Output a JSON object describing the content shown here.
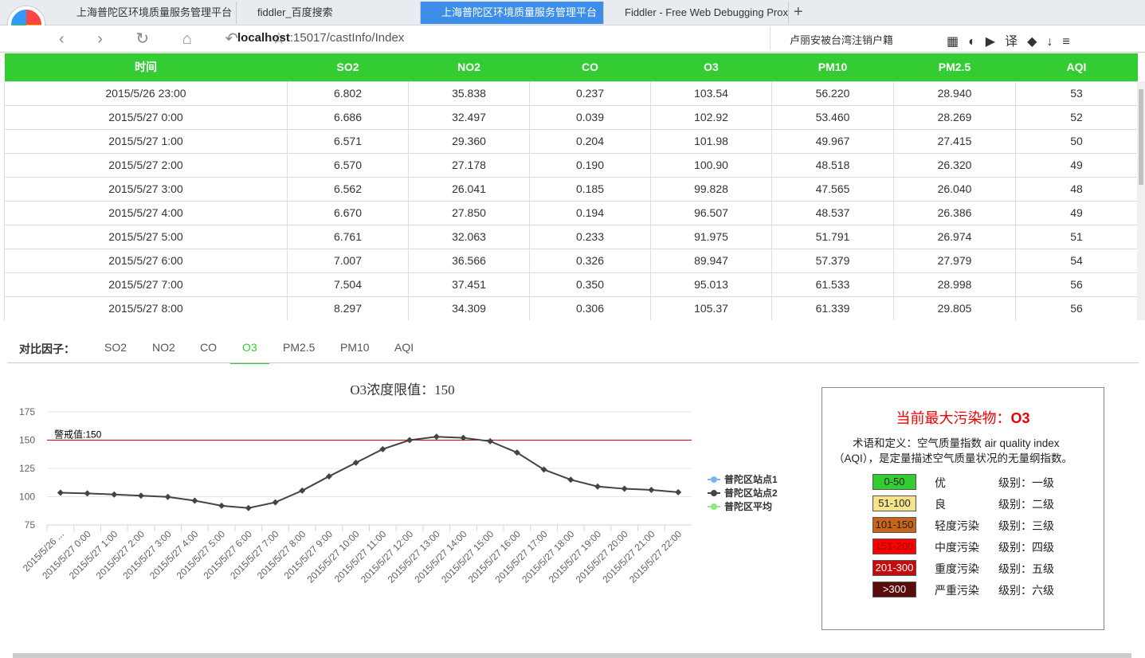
{
  "browser": {
    "tabs": [
      "上海普陀区环境质量服务管理平台",
      "fiddler_百度搜索",
      "上海普陀区环境质量服务管理平台",
      "Fiddler - Free Web Debugging Proxy"
    ],
    "active_tab": 2,
    "url_host": "localhost",
    "url_path": ":15017/castInfo/Index",
    "search": "卢丽安被台湾注销户籍"
  },
  "table": {
    "headers": [
      "时间",
      "SO2",
      "NO2",
      "CO",
      "O3",
      "PM10",
      "PM2.5",
      "AQI"
    ],
    "rows": [
      [
        "2015/5/26 23:00",
        "6.802",
        "35.838",
        "0.237",
        "103.54",
        "56.220",
        "28.940",
        "53"
      ],
      [
        "2015/5/27 0:00",
        "6.686",
        "32.497",
        "0.039",
        "102.92",
        "53.460",
        "28.269",
        "52"
      ],
      [
        "2015/5/27 1:00",
        "6.571",
        "29.360",
        "0.204",
        "101.98",
        "49.967",
        "27.415",
        "50"
      ],
      [
        "2015/5/27 2:00",
        "6.570",
        "27.178",
        "0.190",
        "100.90",
        "48.518",
        "26.320",
        "49"
      ],
      [
        "2015/5/27 3:00",
        "6.562",
        "26.041",
        "0.185",
        "99.828",
        "47.565",
        "26.040",
        "48"
      ],
      [
        "2015/5/27 4:00",
        "6.670",
        "27.850",
        "0.194",
        "96.507",
        "48.537",
        "26.386",
        "49"
      ],
      [
        "2015/5/27 5:00",
        "6.761",
        "32.063",
        "0.233",
        "91.975",
        "51.791",
        "26.974",
        "51"
      ],
      [
        "2015/5/27 6:00",
        "7.007",
        "36.566",
        "0.326",
        "89.947",
        "57.379",
        "27.979",
        "54"
      ],
      [
        "2015/5/27 7:00",
        "7.504",
        "37.451",
        "0.350",
        "95.013",
        "61.533",
        "28.998",
        "56"
      ],
      [
        "2015/5/27 8:00",
        "8.297",
        "34.309",
        "0.306",
        "105.37",
        "61.339",
        "29.805",
        "56"
      ]
    ]
  },
  "factors": {
    "label": "对比因子：",
    "items": [
      "SO2",
      "NO2",
      "CO",
      "O3",
      "PM2.5",
      "PM10",
      "AQI"
    ],
    "active": 3
  },
  "chart_data": {
    "type": "line",
    "title": "O3浓度限值：150",
    "categories": [
      "2015/5/26 ...",
      "2015/5/27 0:00",
      "2015/5/27 1:00",
      "2015/5/27 2:00",
      "2015/5/27 3:00",
      "2015/5/27 4:00",
      "2015/5/27 5:00",
      "2015/5/27 6:00",
      "2015/5/27 7:00",
      "2015/5/27 8:00",
      "2015/5/27 9:00",
      "2015/5/27 10:00",
      "2015/5/27 11:00",
      "2015/5/27 12:00",
      "2015/5/27 13:00",
      "2015/5/27 14:00",
      "2015/5/27 15:00",
      "2015/5/27 16:00",
      "2015/5/27 17:00",
      "2015/5/27 18:00",
      "2015/5/27 19:00",
      "2015/5/27 20:00",
      "2015/5/27 21:00",
      "2015/5/27 22:00"
    ],
    "series": [
      {
        "name": "普陀区站点1",
        "color": "#7cb5ec",
        "values": [
          null,
          null,
          null,
          null,
          null,
          null,
          null,
          null,
          null,
          null,
          null,
          null,
          null,
          null,
          null,
          null,
          null,
          null,
          null,
          null,
          null,
          null,
          null,
          null
        ]
      },
      {
        "name": "普陀区站点2",
        "color": "#434348",
        "values": [
          103.54,
          102.92,
          101.98,
          100.9,
          99.828,
          96.507,
          91.975,
          89.947,
          95.013,
          105.37,
          118,
          130,
          142,
          150,
          153,
          152,
          149,
          139,
          124,
          115,
          109,
          107,
          106,
          104
        ]
      },
      {
        "name": "普陀区平均",
        "color": "#90ed7d",
        "values": [
          null,
          null,
          null,
          null,
          null,
          null,
          null,
          null,
          null,
          null,
          null,
          null,
          null,
          null,
          null,
          null,
          null,
          null,
          null,
          null,
          null,
          null,
          null,
          null
        ]
      }
    ],
    "ylim": [
      75,
      175
    ],
    "yticks": [
      75,
      100,
      125,
      150,
      175
    ],
    "grid": true,
    "threshold": {
      "value": 150,
      "label": "警戒值:150",
      "color": "#cc0000"
    }
  },
  "info": {
    "title": "当前最大污染物：",
    "pollutant": "O3",
    "definition": "术语和定义：空气质量指数 air quality index（AQI），是定量描述空气质量状况的无量纲指数。",
    "levels": [
      {
        "range": "0-50",
        "name": "优",
        "grade": "级别：一级",
        "color": "#33cc33",
        "text_color": "#222"
      },
      {
        "range": "51-100",
        "name": "良",
        "grade": "级别：二级",
        "color": "#f7e38a",
        "text_color": "#222"
      },
      {
        "range": "101-150",
        "name": "轻度污染",
        "grade": "级别：三级",
        "color": "#c8651b",
        "text_color": "#222"
      },
      {
        "range": "151-200",
        "name": "中度污染",
        "grade": "级别：四级",
        "color": "#ff0000",
        "text_color": "#990000"
      },
      {
        "range": "201-300",
        "name": "重度污染",
        "grade": "级别：五级",
        "color": "#c40c0c",
        "text_color": "#fff"
      },
      {
        "range": ">300",
        "name": "严重污染",
        "grade": "级别：六级",
        "color": "#5a0b0b",
        "text_color": "#fff"
      }
    ]
  }
}
